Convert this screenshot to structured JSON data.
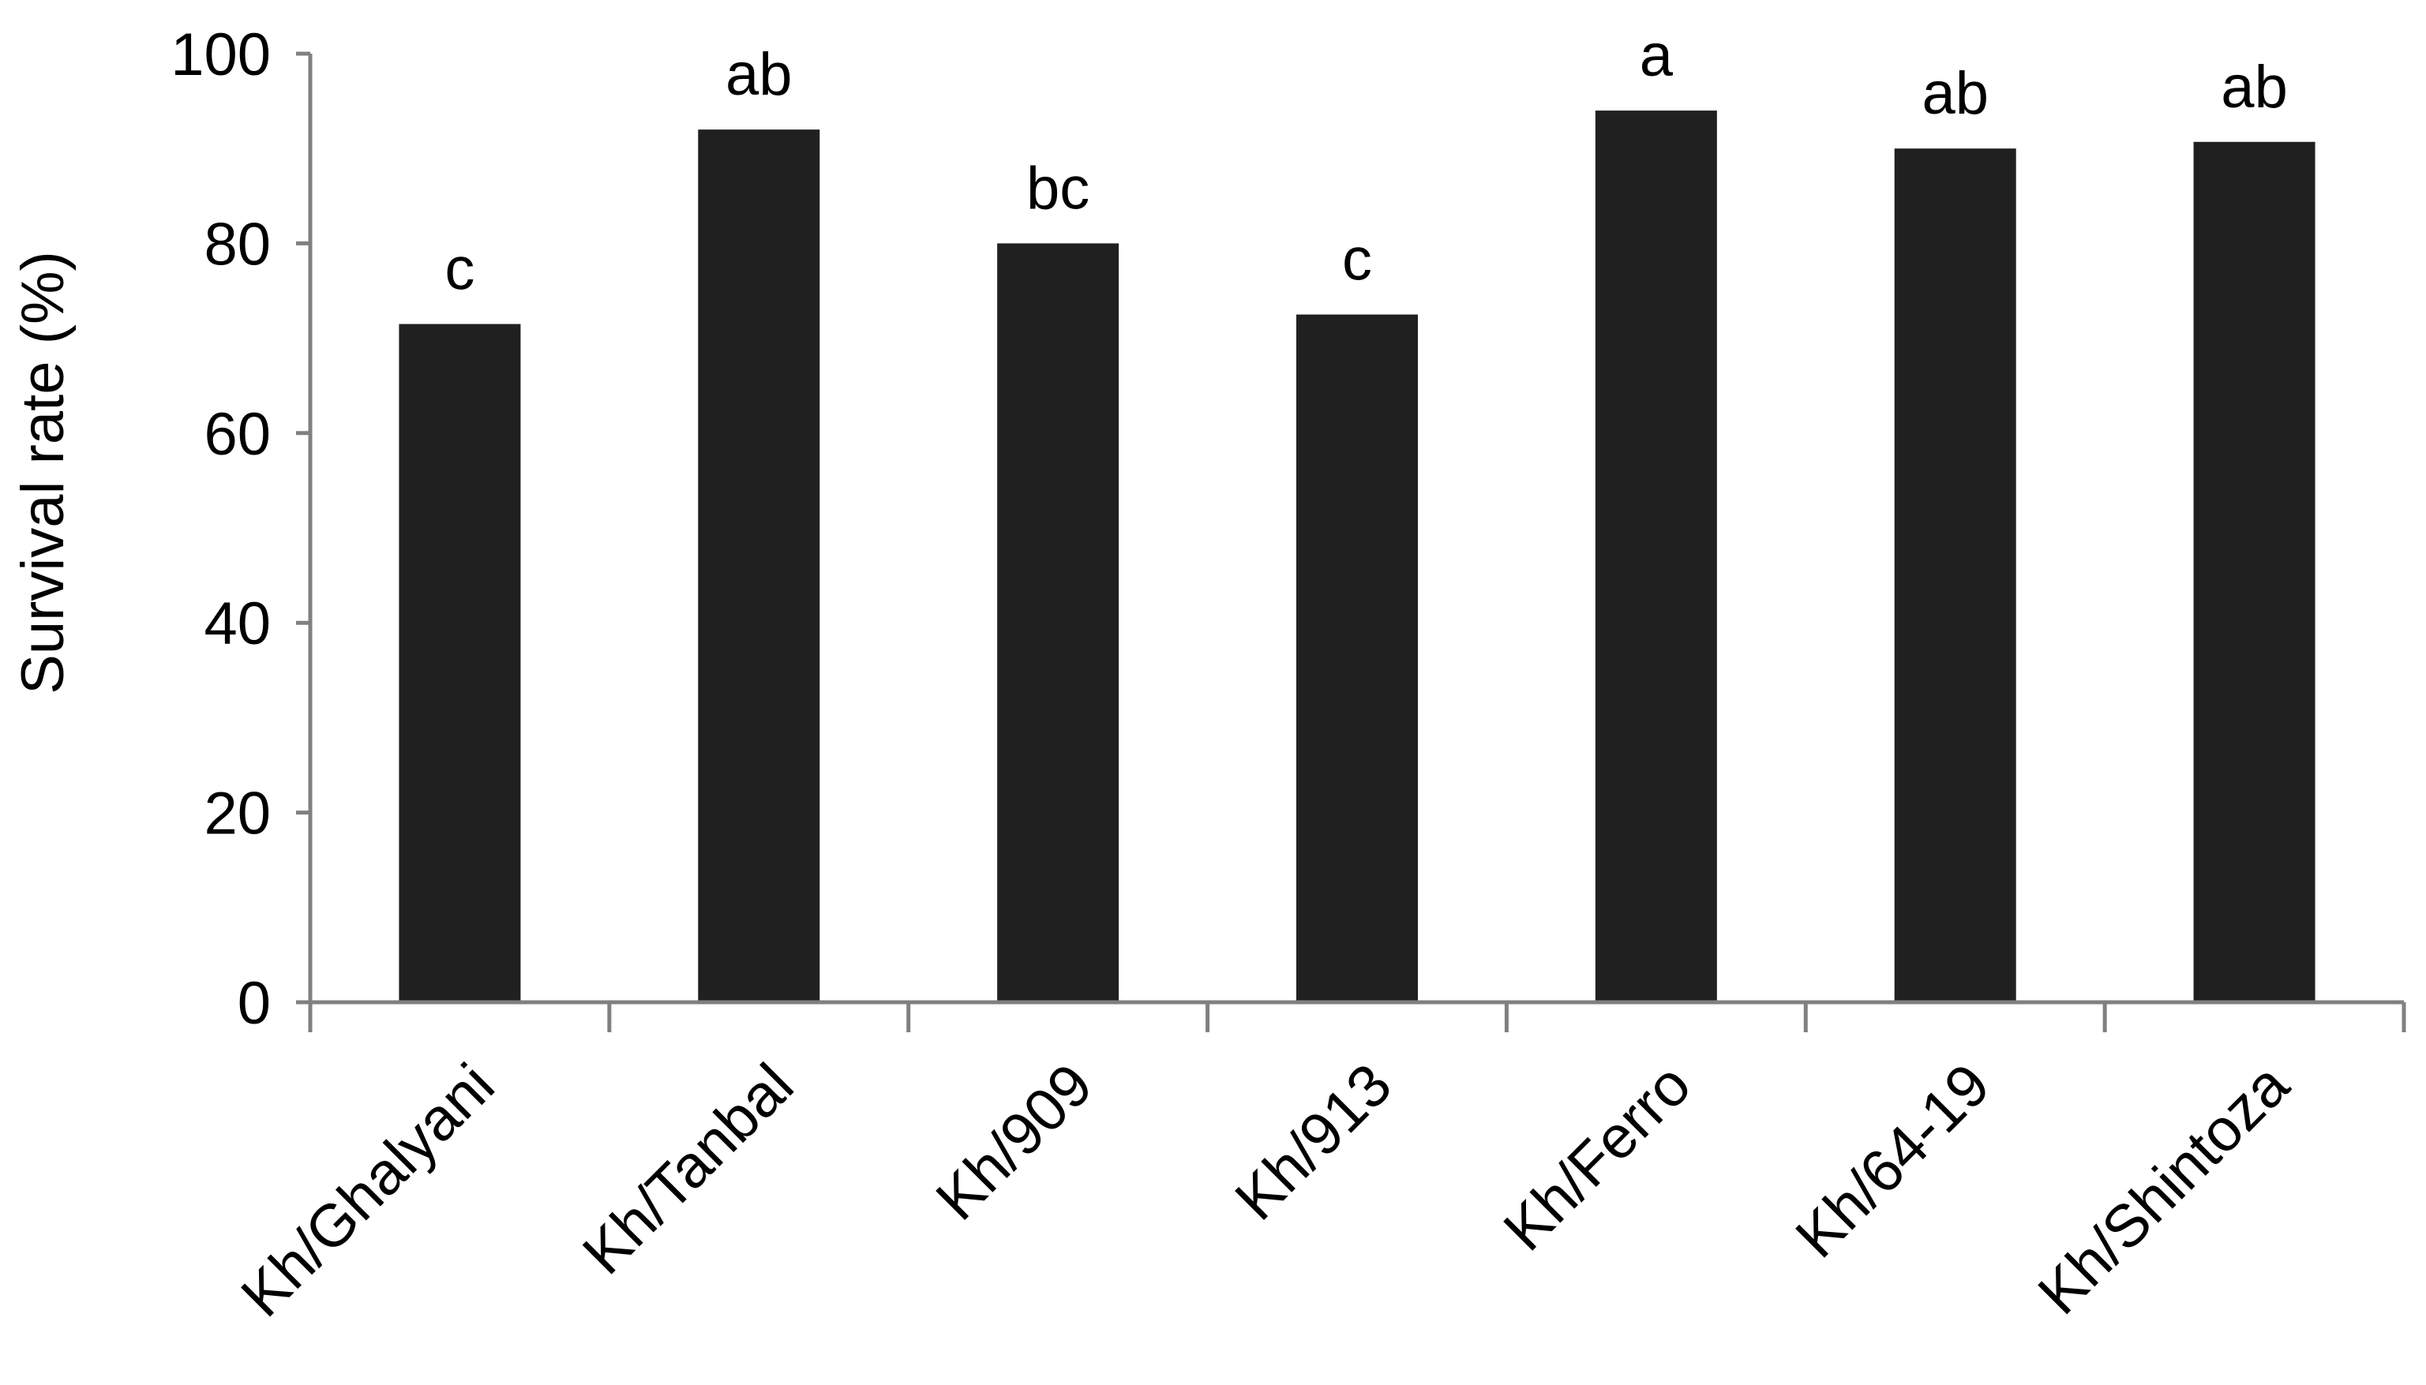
{
  "chart_data": {
    "type": "bar",
    "title": "",
    "xlabel": "",
    "ylabel": "Survival rate (%)",
    "ylim": [
      0,
      100
    ],
    "yticks": [
      0,
      20,
      40,
      60,
      80,
      100
    ],
    "grid": false,
    "legend": "none",
    "bar_color": "#202020",
    "categories": [
      "Kh/Ghalyani",
      "Kh/Tanbal",
      "Kh/909",
      "Kh/913",
      "Kh/Ferro",
      "Kh/64-19",
      "Kh/Shintoza"
    ],
    "values": [
      71.5,
      92,
      80,
      72.5,
      94,
      90,
      90.7
    ],
    "annotations": [
      "c",
      "ab",
      "bc",
      "c",
      "a",
      "ab",
      "ab"
    ]
  }
}
